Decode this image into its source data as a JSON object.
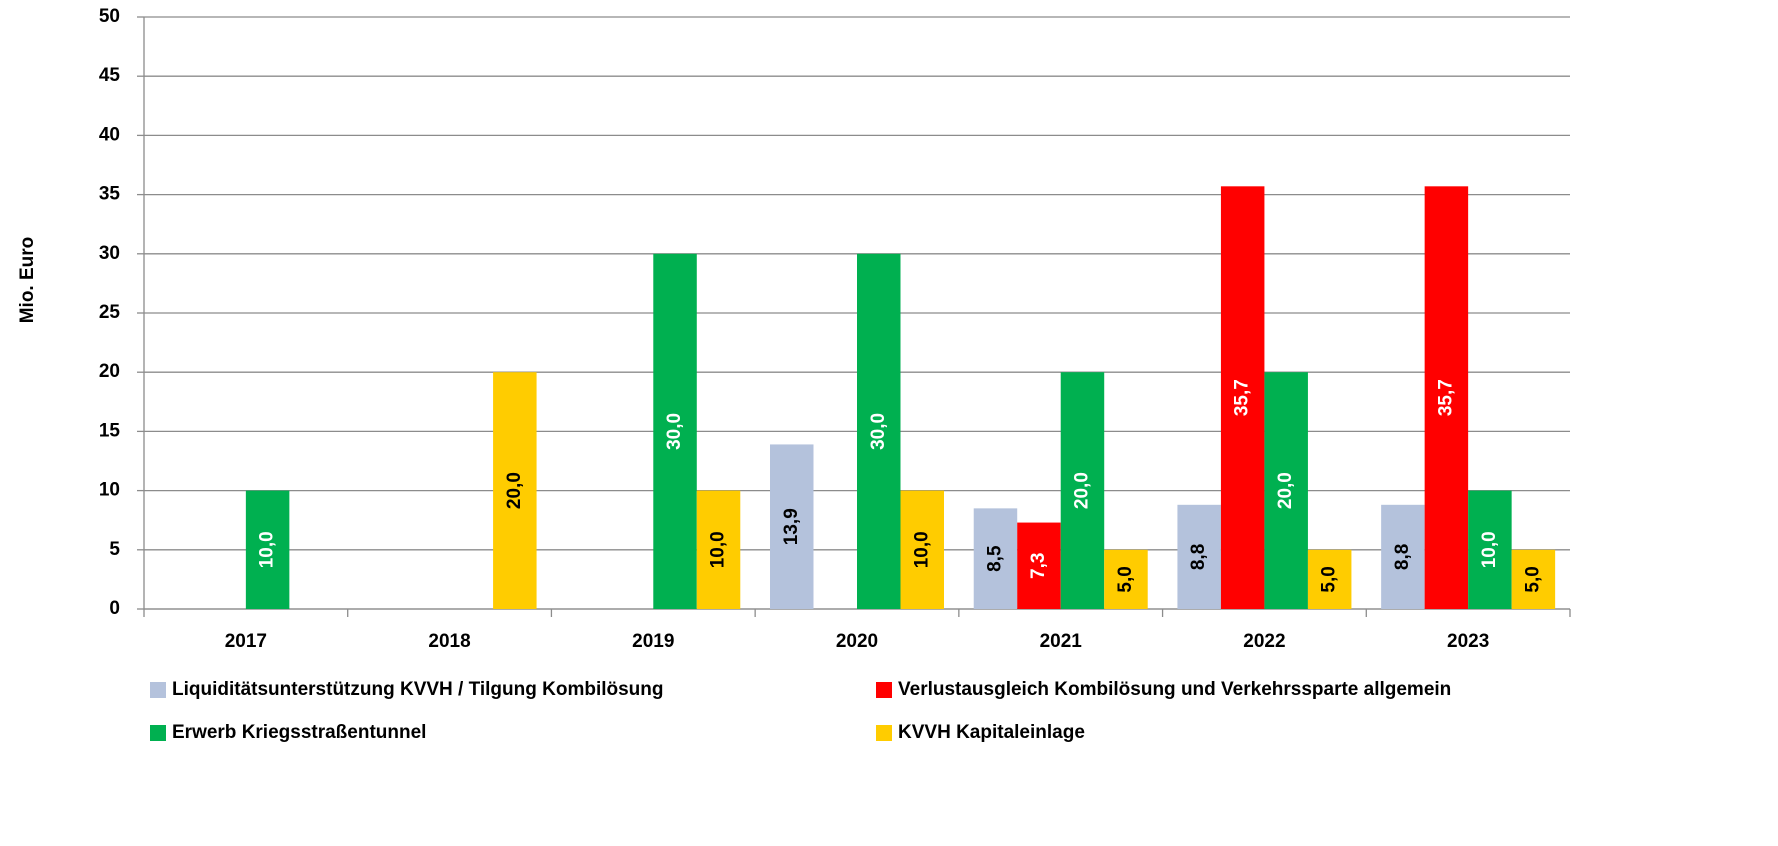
{
  "chart_data": {
    "type": "bar",
    "y_axis_label": "Mio. Euro",
    "categories": [
      "2017",
      "2018",
      "2019",
      "2020",
      "2021",
      "2022",
      "2023"
    ],
    "series": [
      {
        "name": "Liquiditätsunterstützung KVVH / Tilgung Kombilösung",
        "color": "#b4c2dc",
        "label_color": "#000000",
        "values": [
          null,
          null,
          null,
          13.9,
          8.5,
          8.8,
          8.8
        ],
        "value_labels": [
          null,
          null,
          null,
          "13,9",
          "8,5",
          "8,8",
          "8,8"
        ]
      },
      {
        "name": "Verlustausgleich Kombilösung und Verkehrssparte allgemein",
        "color": "#ff0000",
        "label_color": "#ffffff",
        "values": [
          null,
          null,
          null,
          null,
          7.3,
          35.7,
          35.7
        ],
        "value_labels": [
          null,
          null,
          null,
          null,
          "7,3",
          "35,7",
          "35,7"
        ]
      },
      {
        "name": "Erwerb Kriegsstraßentunnel",
        "color": "#00b050",
        "label_color": "#ffffff",
        "values": [
          10,
          null,
          30,
          30,
          20,
          20,
          10
        ],
        "value_labels": [
          "10,0",
          null,
          "30,0",
          "30,0",
          "20,0",
          "20,0",
          "10,0"
        ]
      },
      {
        "name": "KVVH Kapitaleinlage",
        "color": "#ffcc00",
        "label_color": "#000000",
        "values": [
          null,
          20,
          10,
          10,
          5,
          5,
          5
        ],
        "value_labels": [
          null,
          "20,0",
          "10,0",
          "10,0",
          "5,0",
          "5,0",
          "5,0"
        ]
      }
    ],
    "ylim": [
      0,
      50
    ],
    "yticks": [
      0,
      5,
      10,
      15,
      20,
      25,
      30,
      35,
      40,
      45,
      50
    ],
    "grid": true
  }
}
